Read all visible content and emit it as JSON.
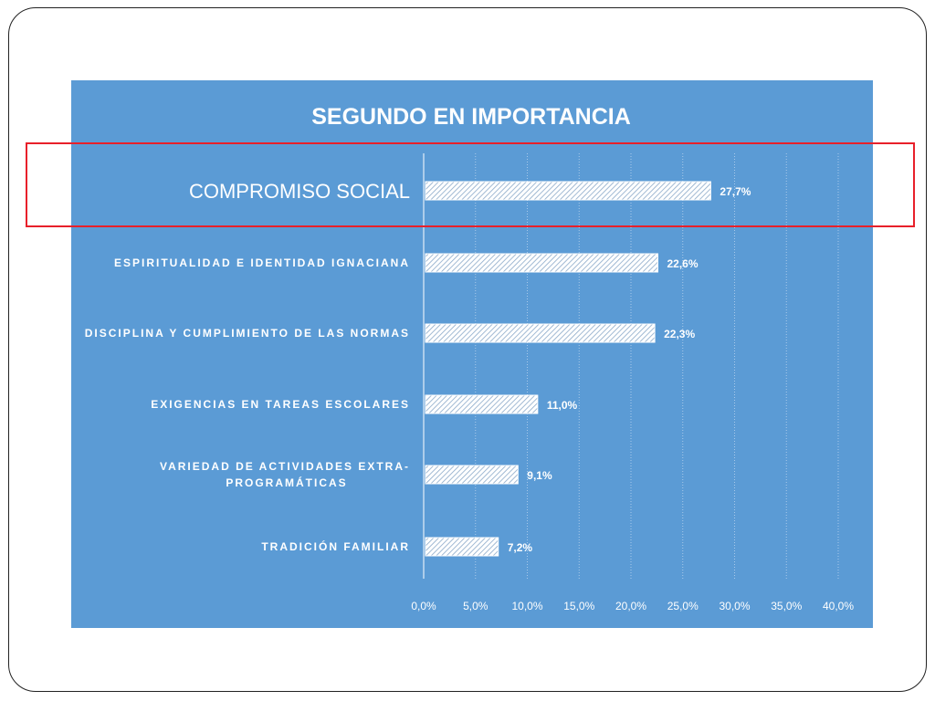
{
  "chart_data": {
    "type": "bar",
    "orientation": "horizontal",
    "title": "SEGUNDO EN IMPORTANCIA",
    "categories": [
      "COMPROMISO SOCIAL",
      "ESPIRITUALIDAD E IDENTIDAD IGNACIANA",
      "DISCIPLINA Y CUMPLIMIENTO DE LAS NORMAS",
      "EXIGENCIAS EN TAREAS ESCOLARES",
      "VARIEDAD DE ACTIVIDADES EXTRA-PROGRAMÁTICAS",
      "TRADICIÓN FAMILIAR"
    ],
    "category_lines": [
      [
        "COMPROMISO SOCIAL"
      ],
      [
        "ESPIRITUALIDAD E IDENTIDAD IGNACIANA"
      ],
      [
        "DISCIPLINA Y CUMPLIMIENTO DE LAS NORMAS"
      ],
      [
        "EXIGENCIAS EN TAREAS ESCOLARES"
      ],
      [
        "VARIEDAD DE ACTIVIDADES EXTRA-",
        "PROGRAMÁTICAS"
      ],
      [
        "TRADICIÓN FAMILIAR"
      ]
    ],
    "values": [
      27.7,
      22.6,
      22.3,
      11.0,
      9.1,
      7.2
    ],
    "value_labels": [
      "27,7%",
      "22,6%",
      "22,3%",
      "11,0%",
      "9,1%",
      "7,2%"
    ],
    "xlim": [
      0,
      40
    ],
    "x_ticks": [
      0,
      5,
      10,
      15,
      20,
      25,
      30,
      35,
      40
    ],
    "x_tick_labels": [
      "0,0%",
      "5,0%",
      "10,0%",
      "15,0%",
      "20,0%",
      "25,0%",
      "30,0%",
      "35,0%",
      "40,0%"
    ],
    "highlighted_category": "COMPROMISO SOCIAL",
    "grid": true,
    "colors": {
      "background": "#5b9bd5",
      "bar_fill": "#ffffff",
      "text": "#ffffff",
      "highlight": "#e8202a"
    }
  }
}
